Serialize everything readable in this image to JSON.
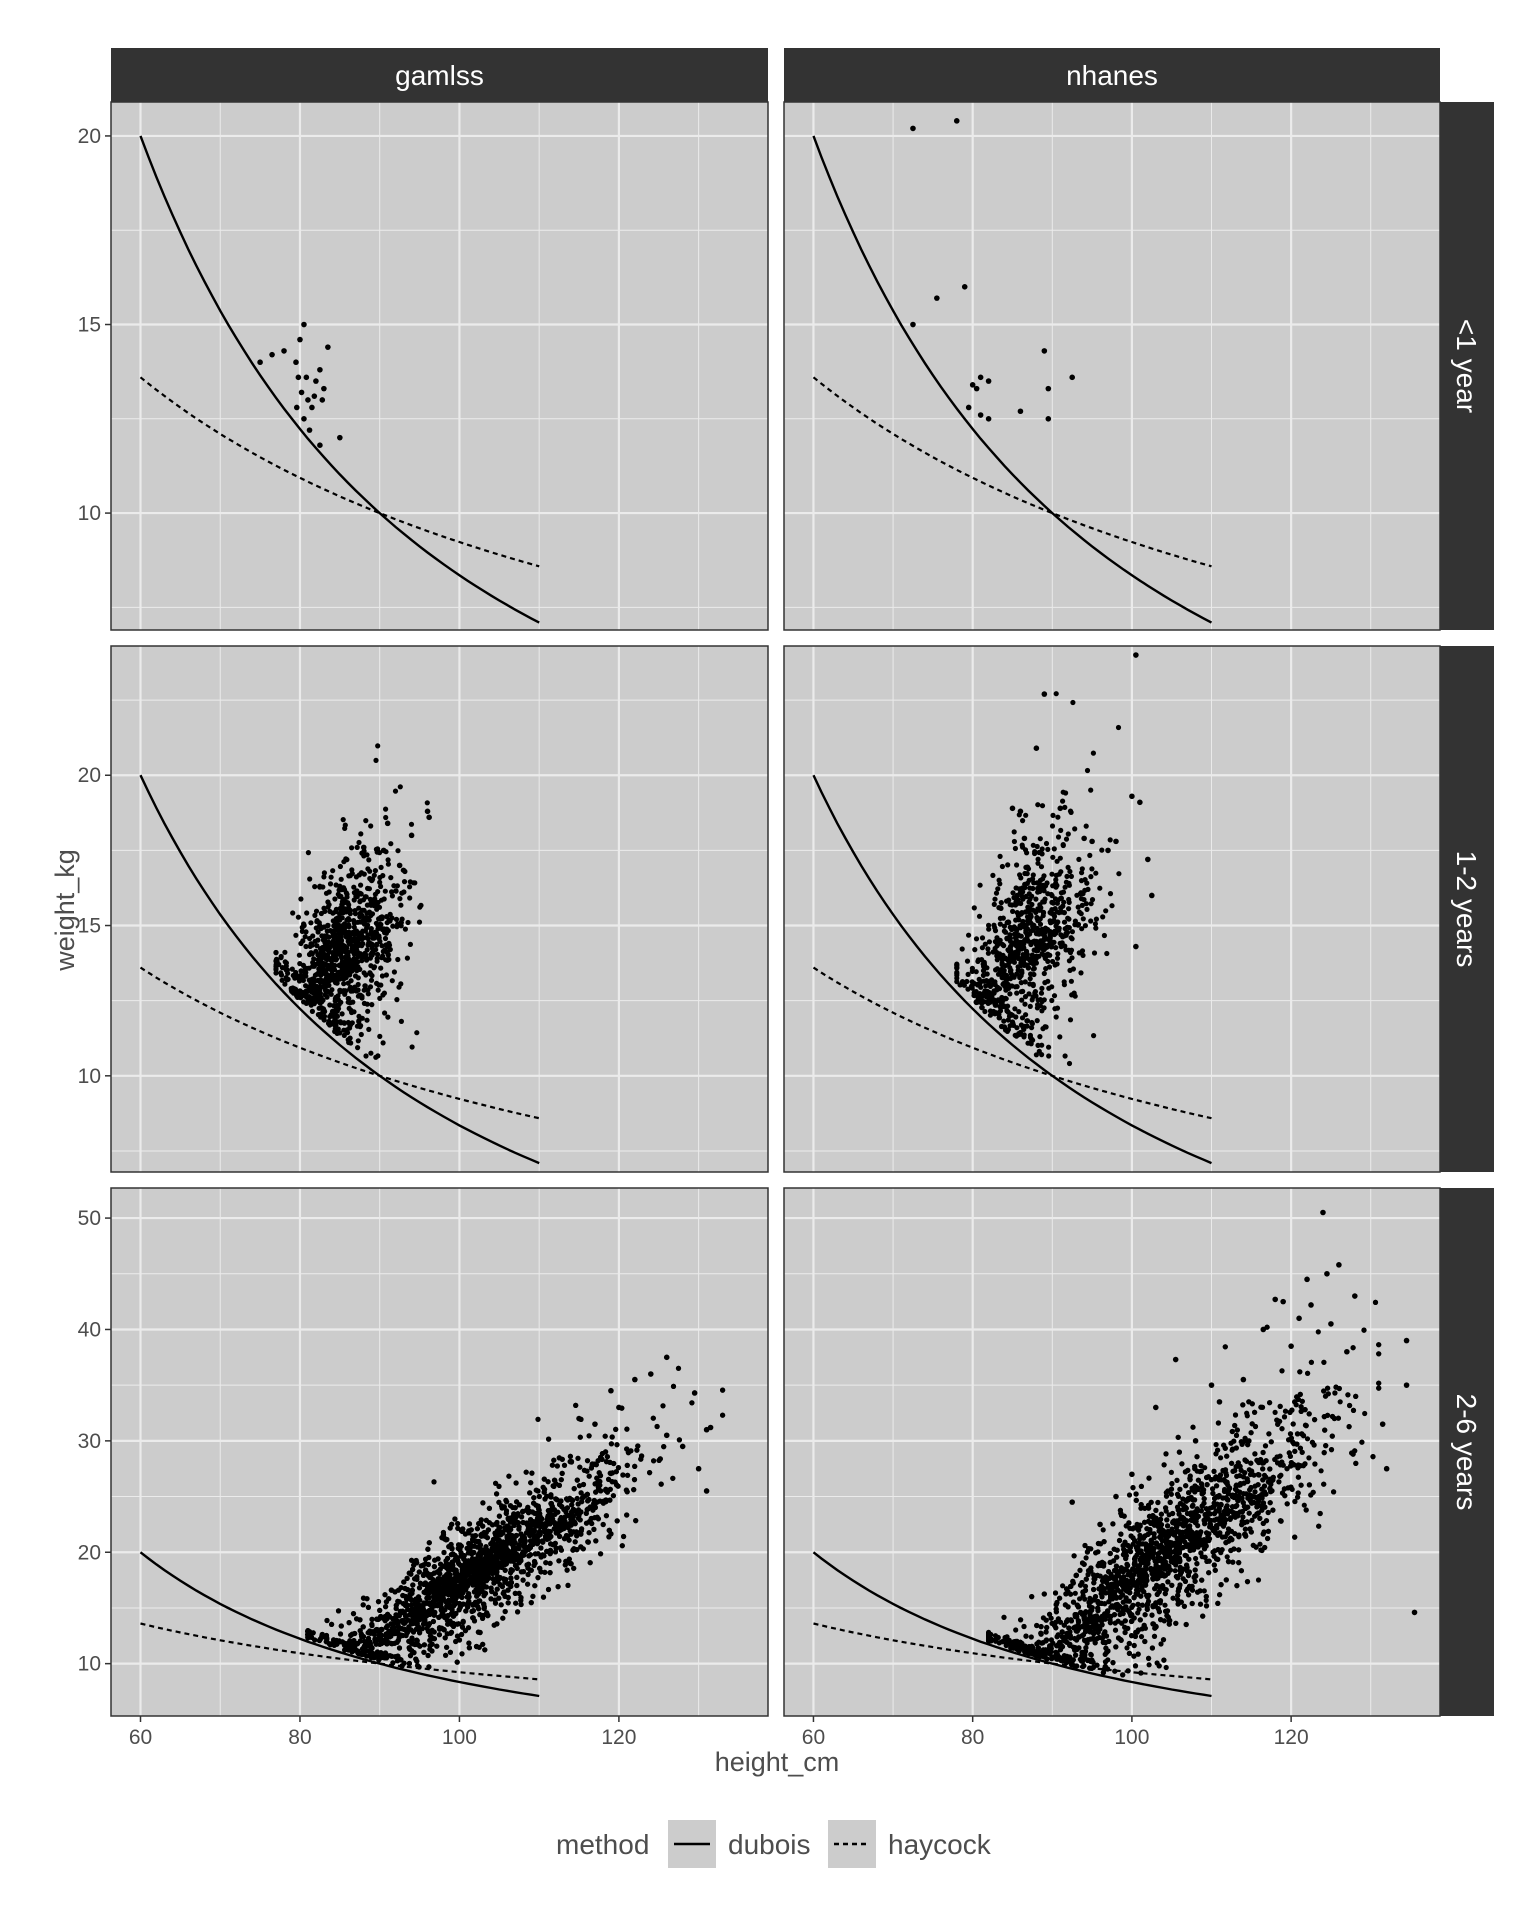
{
  "chart_data": {
    "type": "scatter",
    "facets": {
      "columns": [
        "gamlss",
        "nhanes"
      ],
      "rows": [
        "<1 year",
        "1-2 years",
        "2-6 years"
      ]
    },
    "xlabel": "height_cm",
    "ylabel": "weight_kg",
    "x_ticks": [
      60,
      80,
      100,
      120
    ],
    "xlim": [
      56.3,
      138.7
    ],
    "panels": [
      {
        "column": "gamlss",
        "row": "<1 year",
        "ylim": [
          6.9,
          20.9
        ],
        "y_ticks": [
          10,
          15,
          20
        ],
        "points": [
          [
            75.0,
            14.0
          ],
          [
            76.5,
            14.2
          ],
          [
            78.0,
            14.3
          ],
          [
            79.5,
            14.0
          ],
          [
            80.0,
            14.6
          ],
          [
            80.5,
            15.0
          ],
          [
            79.8,
            13.6
          ],
          [
            80.2,
            13.2
          ],
          [
            80.8,
            13.6
          ],
          [
            81.0,
            13.0
          ],
          [
            81.5,
            12.8
          ],
          [
            82.0,
            13.5
          ],
          [
            82.5,
            13.8
          ],
          [
            83.0,
            13.3
          ],
          [
            83.5,
            14.4
          ],
          [
            79.6,
            12.8
          ],
          [
            80.5,
            12.5
          ],
          [
            81.2,
            12.2
          ],
          [
            82.5,
            11.8
          ],
          [
            85.0,
            12.0
          ],
          [
            81.8,
            13.1
          ],
          [
            82.8,
            13.0
          ]
        ]
      },
      {
        "column": "nhanes",
        "row": "<1 year",
        "ylim": [
          6.9,
          20.9
        ],
        "y_ticks": [
          10,
          15,
          20
        ],
        "points": [
          [
            72.5,
            20.2
          ],
          [
            78.0,
            20.4
          ],
          [
            75.5,
            15.7
          ],
          [
            79.0,
            16.0
          ],
          [
            72.5,
            15.0
          ],
          [
            80.0,
            13.4
          ],
          [
            81.0,
            13.6
          ],
          [
            82.0,
            13.5
          ],
          [
            79.5,
            12.8
          ],
          [
            81.0,
            12.6
          ],
          [
            82.0,
            12.5
          ],
          [
            80.5,
            13.3
          ],
          [
            86.0,
            12.7
          ],
          [
            89.0,
            14.3
          ],
          [
            89.5,
            13.3
          ],
          [
            89.5,
            12.5
          ],
          [
            92.5,
            13.6
          ]
        ]
      },
      {
        "column": "gamlss",
        "row": "1-2 years",
        "ylim": [
          6.8,
          24.3
        ],
        "y_ticks": [
          10,
          15,
          20
        ],
        "cloud": {
          "x_mean": 85.5,
          "x_sd": 3.5,
          "x_min": 77.0,
          "x_max": 97.0,
          "y_mean": 13.2,
          "y_sd": 1.5,
          "y_slope": 0.18,
          "y_floor": "dubois",
          "n": 1000
        },
        "points": [
          [
            96.0,
            18.8
          ],
          [
            96.2,
            18.6
          ],
          [
            94.0,
            18.0
          ],
          [
            91.0,
            18.4
          ],
          [
            90.5,
            17.5
          ],
          [
            88.0,
            17.6
          ],
          [
            92.5,
            17.0
          ],
          [
            89.0,
            16.5
          ],
          [
            85.0,
            16.3
          ],
          [
            82.5,
            16.3
          ],
          [
            83.5,
            15.0
          ],
          [
            80.5,
            15.0
          ]
        ]
      },
      {
        "column": "nhanes",
        "row": "1-2 years",
        "ylim": [
          6.8,
          24.3
        ],
        "y_ticks": [
          10,
          15,
          20
        ],
        "cloud": {
          "x_mean": 87.0,
          "x_sd": 4.0,
          "x_min": 78.0,
          "x_max": 102.0,
          "y_mean": 13.5,
          "y_sd": 1.7,
          "y_slope": 0.18,
          "y_floor": "dubois",
          "n": 850
        },
        "points": [
          [
            100.5,
            24.0
          ],
          [
            89.0,
            22.7
          ],
          [
            88.0,
            20.9
          ],
          [
            100.0,
            19.3
          ],
          [
            101.0,
            19.1
          ],
          [
            85.0,
            18.9
          ],
          [
            91.0,
            18.9
          ],
          [
            86.0,
            18.8
          ],
          [
            98.0,
            17.8
          ],
          [
            102.0,
            17.2
          ],
          [
            102.5,
            16.0
          ],
          [
            100.5,
            14.3
          ],
          [
            86.5,
            17.9
          ],
          [
            94.0,
            17.9
          ],
          [
            95.0,
            17.8
          ],
          [
            97.0,
            17.5
          ]
        ]
      },
      {
        "column": "gamlss",
        "row": "2-6 years",
        "ylim": [
          5.3,
          52.7
        ],
        "y_ticks": [
          10,
          20,
          30,
          40,
          50
        ],
        "cloud": {
          "x_mean": 102.0,
          "x_sd": 9.0,
          "x_min": 81.0,
          "x_max": 133.0,
          "y_mean": 17.0,
          "y_sd": 2.2,
          "y_slope": 0.45,
          "y_floor": "dubois",
          "n": 3600
        },
        "points": [
          [
            126.0,
            37.5
          ],
          [
            124.0,
            36.0
          ],
          [
            122.0,
            35.5
          ],
          [
            129.5,
            34.3
          ],
          [
            131.0,
            31.0
          ],
          [
            131.5,
            31.2
          ],
          [
            131.0,
            25.5
          ],
          [
            130.0,
            27.5
          ],
          [
            128.0,
            29.5
          ],
          [
            126.0,
            30.5
          ],
          [
            119.0,
            34.5
          ],
          [
            120.0,
            33.0
          ],
          [
            115.0,
            32.0
          ],
          [
            117.0,
            31.5
          ]
        ]
      },
      {
        "column": "nhanes",
        "row": "2-6 years",
        "ylim": [
          5.3,
          52.7
        ],
        "y_ticks": [
          10,
          20,
          30,
          40,
          50
        ],
        "cloud": {
          "x_mean": 103.0,
          "x_sd": 10.0,
          "x_min": 82.0,
          "x_max": 131.0,
          "y_mean": 17.5,
          "y_sd": 3.0,
          "y_slope": 0.55,
          "y_floor": "dubois",
          "n": 3200
        },
        "points": [
          [
            124.0,
            50.5
          ],
          [
            126.0,
            45.8
          ],
          [
            124.5,
            45.0
          ],
          [
            122.0,
            44.5
          ],
          [
            128.0,
            43.0
          ],
          [
            118.0,
            42.7
          ],
          [
            119.0,
            42.5
          ],
          [
            122.5,
            42.2
          ],
          [
            134.5,
            39.0
          ],
          [
            121.0,
            41.0
          ],
          [
            125.0,
            40.5
          ],
          [
            127.0,
            38.0
          ],
          [
            116.5,
            40.0
          ],
          [
            120.0,
            38.5
          ],
          [
            134.5,
            35.0
          ],
          [
            131.5,
            31.5
          ],
          [
            132.0,
            27.5
          ],
          [
            135.5,
            14.6
          ],
          [
            105.5,
            37.3
          ],
          [
            103.0,
            33.0
          ],
          [
            100.0,
            27.0
          ],
          [
            92.5,
            24.5
          ],
          [
            110.0,
            35.0
          ],
          [
            114.0,
            35.5
          ],
          [
            108.0,
            30.0
          ],
          [
            111.0,
            33.5
          ],
          [
            96.0,
            22.5
          ],
          [
            98.0,
            25.0
          ]
        ]
      }
    ],
    "reference_curves": {
      "x_range": [
        60,
        110
      ],
      "dubois": {
        "label": "dubois",
        "linetype": "solid",
        "points": [
          [
            60,
            20.0
          ],
          [
            70,
            14.95
          ],
          [
            80,
            12.25
          ],
          [
            90,
            10.0
          ],
          [
            100,
            8.6
          ],
          [
            110,
            7.3
          ]
        ]
      },
      "haycock": {
        "label": "haycock",
        "linetype": "dashed",
        "points": [
          [
            60,
            13.6
          ],
          [
            70,
            12.05
          ],
          [
            80,
            10.9
          ],
          [
            90,
            10.0
          ],
          [
            100,
            9.3
          ],
          [
            110,
            8.7
          ]
        ]
      }
    },
    "legend": {
      "title": "method",
      "position": "bottom",
      "entries": [
        {
          "label": "dubois",
          "linetype": "solid"
        },
        {
          "label": "haycock",
          "linetype": "dashed"
        }
      ]
    },
    "grid": true,
    "colors": {
      "panel_bg": "#cccccc",
      "grid": "#ebebeb",
      "strip_bg": "#333333",
      "strip_text": "#ffffff",
      "point": "#000000",
      "axis_text": "#4d4d4d"
    }
  }
}
